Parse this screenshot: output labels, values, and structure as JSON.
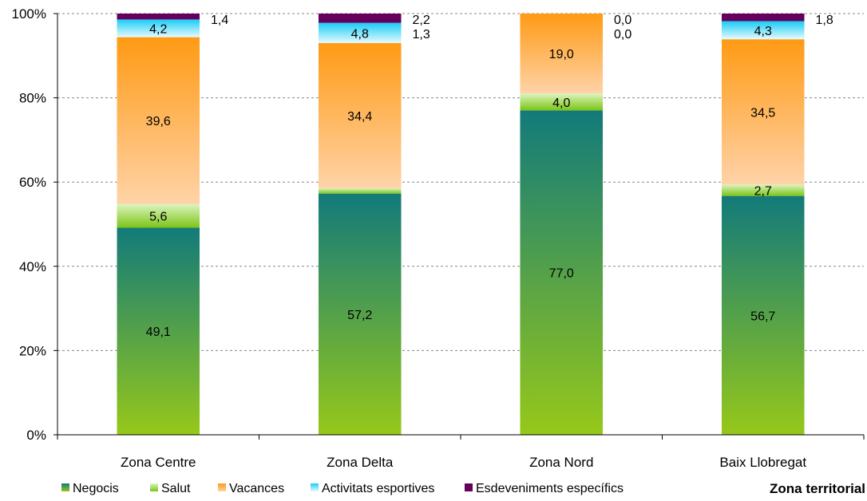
{
  "chart_data": {
    "type": "bar",
    "stacked": true,
    "normalized": true,
    "categories": [
      "Zona Centre",
      "Zona Delta",
      "Zona Nord",
      "Baix Llobregat"
    ],
    "series": [
      {
        "name": "Negocis",
        "values": [
          49.1,
          57.2,
          77.0,
          56.7
        ],
        "labels": [
          "49,1",
          "57,2",
          "77,0",
          "56,7"
        ],
        "colors": [
          "#96c81a",
          "#127a7a"
        ]
      },
      {
        "name": "Salut",
        "values": [
          5.6,
          1.3,
          4.0,
          2.7
        ],
        "labels": [
          "5,6",
          "1,3",
          "4,0",
          "2,7"
        ],
        "colors": [
          "#7cc417",
          "#dcf5bf"
        ]
      },
      {
        "name": "Vacances",
        "values": [
          39.6,
          34.4,
          19.0,
          34.5
        ],
        "labels": [
          "39,6",
          "34,4",
          "19,0",
          "34,5"
        ],
        "colors": [
          "#ffd3a8",
          "#ff9a14"
        ]
      },
      {
        "name": "Activitats esportives",
        "values": [
          4.2,
          4.8,
          0.0,
          4.3
        ],
        "labels": [
          "4,2",
          "4,8",
          "0,0",
          "4,3"
        ],
        "colors": [
          "#e6fbff",
          "#19ccf5"
        ]
      },
      {
        "name": "Esdeveniments específics",
        "values": [
          1.4,
          2.2,
          0.0,
          1.8
        ],
        "labels": [
          "1,4",
          "2,2",
          "0,0",
          "1,8"
        ],
        "colors": [
          "#66005e",
          "#66005e"
        ]
      }
    ],
    "ylim": [
      0,
      100
    ],
    "yticks": [
      "0%",
      "20%",
      "40%",
      "60%",
      "80%",
      "100%"
    ],
    "xlabel": "Zona territorial",
    "ylabel": "",
    "grid": "horizontal dashed",
    "legend": "bottom"
  }
}
